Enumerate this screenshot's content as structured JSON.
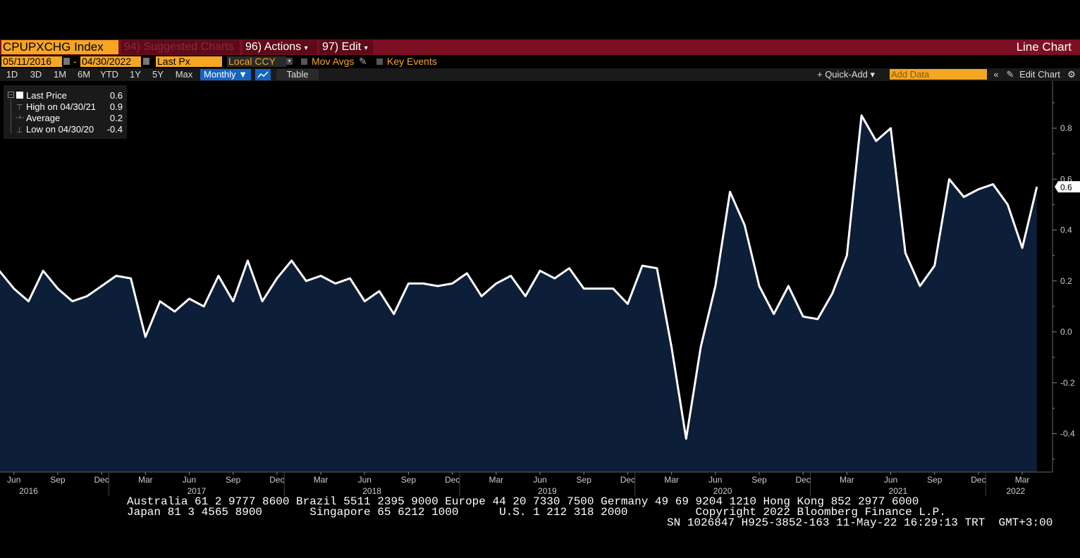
{
  "header": {
    "ticker": "CPUPXCHG Index",
    "suggested": "94) Suggested Charts",
    "actions": "96) Actions",
    "edit": "97) Edit",
    "chart_type": "Line Chart"
  },
  "controls": {
    "start_date": "05/11/2016",
    "end_date": "04/30/2022",
    "dash": "-",
    "price_field": "Last Px",
    "currency": "Local CCY",
    "mov_avgs": "Mov Avgs",
    "key_events": "Key Events",
    "periods": [
      "1D",
      "3D",
      "1M",
      "6M",
      "YTD",
      "1Y",
      "5Y",
      "Max"
    ],
    "frequency": "Monthly ▼",
    "table": "Table",
    "quick_add": "+ Quick-Add ▾",
    "add_data_placeholder": "Add Data",
    "edit_chart": "Edit Chart"
  },
  "legend": {
    "items": [
      {
        "label": "Last Price",
        "value": "0.6"
      },
      {
        "label": "High on 04/30/21",
        "value": "0.9"
      },
      {
        "label": "Average",
        "value": "0.2"
      },
      {
        "label": "Low on 04/30/20",
        "value": "-0.4"
      }
    ]
  },
  "colors": {
    "line": "#ffffff",
    "area": "#0d1f38",
    "accent_orange": "#f5a623",
    "header_red": "#7d0f22",
    "selected_blue": "#1565c0"
  },
  "chart_data": {
    "type": "area",
    "ylim": [
      -0.5,
      0.9
    ],
    "yticks": [
      "0.8",
      "0.6",
      "0.4",
      "0.2",
      "0.0",
      "-0.2",
      "-0.4"
    ],
    "last_value_label": "0.6",
    "x_month_ticks": [
      "Jun",
      "Sep",
      "Dec",
      "Mar",
      "Jun",
      "Sep",
      "Dec",
      "Mar",
      "Jun",
      "Sep",
      "Dec",
      "Mar",
      "Jun",
      "Sep",
      "Dec",
      "Mar",
      "Jun",
      "Sep",
      "Dec",
      "Mar",
      "Jun",
      "Sep",
      "Dec",
      "Mar"
    ],
    "x_year_ticks": [
      "2016",
      "2017",
      "2018",
      "2019",
      "2020",
      "2021",
      "2022"
    ],
    "series": [
      {
        "x": [
          "2016-05",
          "2016-06",
          "2016-07",
          "2016-08",
          "2016-09",
          "2016-10",
          "2016-11",
          "2016-12",
          "2017-01",
          "2017-02",
          "2017-03",
          "2017-04",
          "2017-05",
          "2017-06",
          "2017-07",
          "2017-08",
          "2017-09",
          "2017-10",
          "2017-11",
          "2017-12",
          "2018-01",
          "2018-02",
          "2018-03",
          "2018-04",
          "2018-05",
          "2018-06",
          "2018-07",
          "2018-08",
          "2018-09",
          "2018-10",
          "2018-11",
          "2018-12",
          "2019-01",
          "2019-02",
          "2019-03",
          "2019-04",
          "2019-05",
          "2019-06",
          "2019-07",
          "2019-08",
          "2019-09",
          "2019-10",
          "2019-11",
          "2019-12",
          "2020-01",
          "2020-02",
          "2020-03",
          "2020-04",
          "2020-05",
          "2020-06",
          "2020-07",
          "2020-08",
          "2020-09",
          "2020-10",
          "2020-11",
          "2020-12",
          "2021-01",
          "2021-02",
          "2021-03",
          "2021-04",
          "2021-05",
          "2021-06",
          "2021-07",
          "2021-08",
          "2021-09",
          "2021-10",
          "2021-11",
          "2021-12",
          "2022-01",
          "2022-02",
          "2022-03",
          "2022-04"
        ],
        "values": [
          0.24,
          0.17,
          0.12,
          0.24,
          0.17,
          0.12,
          0.14,
          0.18,
          0.22,
          0.21,
          -0.02,
          0.12,
          0.08,
          0.13,
          0.1,
          0.22,
          0.12,
          0.28,
          0.12,
          0.21,
          0.28,
          0.2,
          0.22,
          0.19,
          0.21,
          0.12,
          0.16,
          0.07,
          0.19,
          0.19,
          0.18,
          0.19,
          0.23,
          0.14,
          0.19,
          0.22,
          0.14,
          0.24,
          0.21,
          0.25,
          0.17,
          0.17,
          0.17,
          0.11,
          0.26,
          0.25,
          -0.06,
          -0.42,
          -0.06,
          0.18,
          0.55,
          0.42,
          0.18,
          0.07,
          0.18,
          0.06,
          0.05,
          0.15,
          0.3,
          0.85,
          0.75,
          0.8,
          0.31,
          0.18,
          0.26,
          0.6,
          0.53,
          0.56,
          0.58,
          0.5,
          0.33,
          0.57
        ]
      }
    ]
  },
  "footer": {
    "line1": "Australia 61 2 9777 8600 Brazil 5511 2395 9000 Europe 44 20 7330 7500 Germany 49 69 9204 1210 Hong Kong 852 2977 6000",
    "line2": "Japan 81 3 4565 8900       Singapore 65 6212 1000      U.S. 1 212 318 2000          Copyright 2022 Bloomberg Finance L.P.",
    "line3": "SN 1026847 H925-3852-163 11-May-22 16:29:13 TRT  GMT+3:00"
  }
}
